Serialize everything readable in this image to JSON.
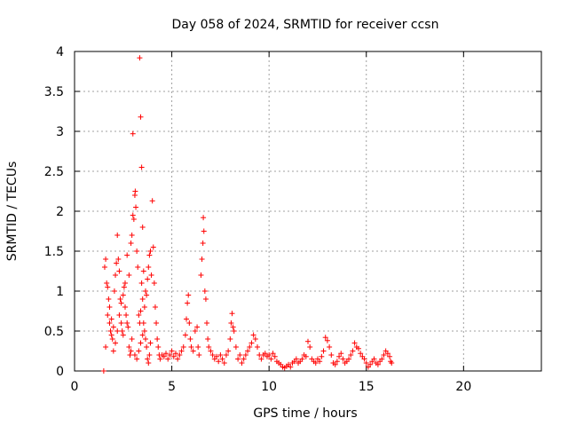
{
  "chart_data": {
    "type": "scatter",
    "title": "Day 058 of 2024, SRMTID for receiver ccsn",
    "xlabel": "GPS time / hours",
    "ylabel": "SRMTID / TECUs",
    "xlim": [
      0,
      24
    ],
    "ylim": [
      0,
      4
    ],
    "xticks": [
      0,
      5,
      10,
      15,
      20
    ],
    "yticks": [
      0,
      0.5,
      1,
      1.5,
      2,
      2.5,
      3,
      3.5,
      4
    ],
    "grid": true,
    "marker": "plus",
    "color": "#ff0000",
    "series": [
      {
        "values": [
          [
            1.5,
            0.0
          ],
          [
            1.55,
            1.3
          ],
          [
            1.6,
            1.4
          ],
          [
            1.65,
            1.1
          ],
          [
            1.7,
            1.05
          ],
          [
            1.75,
            0.9
          ],
          [
            1.8,
            0.6
          ],
          [
            1.85,
            0.5
          ],
          [
            1.9,
            0.45
          ],
          [
            1.95,
            0.4
          ],
          [
            1.6,
            0.3
          ],
          [
            1.7,
            0.7
          ],
          [
            1.8,
            0.8
          ],
          [
            1.9,
            0.65
          ],
          [
            2.0,
            0.55
          ],
          [
            2.05,
            1.0
          ],
          [
            2.1,
            1.2
          ],
          [
            2.15,
            1.35
          ],
          [
            2.2,
            1.7
          ],
          [
            2.25,
            1.4
          ],
          [
            2.3,
            1.25
          ],
          [
            2.35,
            0.9
          ],
          [
            2.4,
            0.6
          ],
          [
            2.45,
            0.5
          ],
          [
            2.5,
            0.45
          ],
          [
            2.0,
            0.25
          ],
          [
            2.1,
            0.35
          ],
          [
            2.2,
            0.5
          ],
          [
            2.3,
            0.7
          ],
          [
            2.4,
            0.85
          ],
          [
            2.5,
            0.95
          ],
          [
            2.55,
            1.05
          ],
          [
            2.6,
            0.8
          ],
          [
            2.65,
            0.7
          ],
          [
            2.7,
            0.6
          ],
          [
            2.75,
            0.55
          ],
          [
            2.8,
            0.3
          ],
          [
            2.85,
            0.2
          ],
          [
            2.9,
            0.25
          ],
          [
            2.95,
            0.4
          ],
          [
            2.6,
            1.1
          ],
          [
            2.7,
            1.45
          ],
          [
            2.8,
            1.2
          ],
          [
            2.9,
            1.6
          ],
          [
            2.95,
            1.7
          ],
          [
            3.0,
            1.95
          ],
          [
            3.05,
            1.9
          ],
          [
            3.1,
            2.2
          ],
          [
            3.12,
            2.25
          ],
          [
            3.15,
            2.05
          ],
          [
            3.0,
            2.97
          ],
          [
            3.2,
            1.5
          ],
          [
            3.25,
            1.3
          ],
          [
            3.3,
            0.7
          ],
          [
            3.35,
            0.6
          ],
          [
            3.4,
            0.75
          ],
          [
            3.45,
            1.1
          ],
          [
            3.5,
            0.9
          ],
          [
            3.35,
            3.92
          ],
          [
            3.4,
            3.18
          ],
          [
            3.45,
            2.55
          ],
          [
            3.5,
            1.8
          ],
          [
            3.55,
            1.25
          ],
          [
            3.6,
            0.5
          ],
          [
            3.65,
            0.4
          ],
          [
            3.7,
            0.3
          ],
          [
            3.75,
            0.15
          ],
          [
            3.8,
            0.1
          ],
          [
            3.85,
            0.2
          ],
          [
            3.9,
            0.35
          ],
          [
            3.1,
            0.2
          ],
          [
            3.2,
            0.15
          ],
          [
            3.3,
            0.25
          ],
          [
            3.4,
            0.35
          ],
          [
            3.5,
            0.45
          ],
          [
            3.55,
            0.6
          ],
          [
            3.6,
            0.8
          ],
          [
            3.65,
            1.0
          ],
          [
            3.7,
            0.95
          ],
          [
            3.75,
            1.15
          ],
          [
            3.8,
            1.3
          ],
          [
            3.85,
            1.45
          ],
          [
            3.9,
            1.5
          ],
          [
            3.95,
            1.2
          ],
          [
            4.0,
            2.13
          ],
          [
            4.05,
            1.55
          ],
          [
            4.1,
            1.1
          ],
          [
            4.15,
            0.8
          ],
          [
            4.2,
            0.6
          ],
          [
            4.25,
            0.4
          ],
          [
            4.3,
            0.3
          ],
          [
            4.35,
            0.2
          ],
          [
            4.4,
            0.15
          ],
          [
            4.5,
            0.2
          ],
          [
            4.6,
            0.18
          ],
          [
            4.7,
            0.22
          ],
          [
            4.8,
            0.15
          ],
          [
            4.9,
            0.2
          ],
          [
            5.0,
            0.25
          ],
          [
            5.1,
            0.18
          ],
          [
            5.2,
            0.22
          ],
          [
            5.3,
            0.15
          ],
          [
            5.4,
            0.2
          ],
          [
            5.5,
            0.25
          ],
          [
            5.6,
            0.3
          ],
          [
            5.7,
            0.45
          ],
          [
            5.75,
            0.65
          ],
          [
            5.8,
            0.85
          ],
          [
            5.85,
            0.95
          ],
          [
            5.9,
            0.6
          ],
          [
            5.95,
            0.4
          ],
          [
            6.0,
            0.3
          ],
          [
            6.1,
            0.25
          ],
          [
            6.2,
            0.5
          ],
          [
            6.3,
            0.55
          ],
          [
            6.35,
            0.3
          ],
          [
            6.4,
            0.2
          ],
          [
            6.5,
            1.2
          ],
          [
            6.55,
            1.4
          ],
          [
            6.6,
            1.6
          ],
          [
            6.62,
            1.92
          ],
          [
            6.65,
            1.75
          ],
          [
            6.7,
            1.0
          ],
          [
            6.75,
            0.9
          ],
          [
            6.8,
            0.6
          ],
          [
            6.85,
            0.4
          ],
          [
            6.9,
            0.3
          ],
          [
            7.0,
            0.25
          ],
          [
            7.1,
            0.2
          ],
          [
            7.2,
            0.15
          ],
          [
            7.3,
            0.18
          ],
          [
            7.4,
            0.12
          ],
          [
            7.5,
            0.2
          ],
          [
            7.6,
            0.15
          ],
          [
            7.7,
            0.1
          ],
          [
            7.8,
            0.2
          ],
          [
            7.9,
            0.25
          ],
          [
            8.0,
            0.4
          ],
          [
            8.05,
            0.6
          ],
          [
            8.1,
            0.72
          ],
          [
            8.15,
            0.55
          ],
          [
            8.2,
            0.5
          ],
          [
            8.3,
            0.3
          ],
          [
            8.4,
            0.15
          ],
          [
            8.5,
            0.2
          ],
          [
            8.6,
            0.1
          ],
          [
            8.7,
            0.15
          ],
          [
            8.8,
            0.2
          ],
          [
            8.9,
            0.25
          ],
          [
            9.0,
            0.3
          ],
          [
            9.1,
            0.35
          ],
          [
            9.2,
            0.45
          ],
          [
            9.3,
            0.4
          ],
          [
            9.4,
            0.3
          ],
          [
            9.5,
            0.2
          ],
          [
            9.6,
            0.15
          ],
          [
            9.7,
            0.2
          ],
          [
            9.8,
            0.22
          ],
          [
            9.9,
            0.18
          ],
          [
            10.0,
            0.2
          ],
          [
            10.1,
            0.15
          ],
          [
            10.2,
            0.22
          ],
          [
            10.3,
            0.18
          ],
          [
            10.4,
            0.12
          ],
          [
            10.5,
            0.1
          ],
          [
            10.6,
            0.08
          ],
          [
            10.7,
            0.05
          ],
          [
            10.8,
            0.04
          ],
          [
            10.9,
            0.06
          ],
          [
            11.0,
            0.08
          ],
          [
            11.1,
            0.05
          ],
          [
            11.2,
            0.1
          ],
          [
            11.3,
            0.12
          ],
          [
            11.4,
            0.15
          ],
          [
            11.5,
            0.1
          ],
          [
            11.6,
            0.12
          ],
          [
            11.7,
            0.15
          ],
          [
            11.8,
            0.2
          ],
          [
            11.9,
            0.18
          ],
          [
            12.0,
            0.37
          ],
          [
            12.1,
            0.3
          ],
          [
            12.2,
            0.15
          ],
          [
            12.3,
            0.12
          ],
          [
            12.4,
            0.1
          ],
          [
            12.5,
            0.15
          ],
          [
            12.6,
            0.12
          ],
          [
            12.7,
            0.18
          ],
          [
            12.8,
            0.25
          ],
          [
            12.9,
            0.42
          ],
          [
            13.0,
            0.38
          ],
          [
            13.1,
            0.3
          ],
          [
            13.2,
            0.2
          ],
          [
            13.3,
            0.1
          ],
          [
            13.4,
            0.08
          ],
          [
            13.5,
            0.12
          ],
          [
            13.6,
            0.18
          ],
          [
            13.7,
            0.22
          ],
          [
            13.8,
            0.15
          ],
          [
            13.9,
            0.1
          ],
          [
            14.0,
            0.12
          ],
          [
            14.1,
            0.15
          ],
          [
            14.2,
            0.2
          ],
          [
            14.3,
            0.25
          ],
          [
            14.4,
            0.35
          ],
          [
            14.5,
            0.3
          ],
          [
            14.6,
            0.28
          ],
          [
            14.7,
            0.22
          ],
          [
            14.8,
            0.18
          ],
          [
            14.9,
            0.15
          ],
          [
            15.0,
            0.1
          ],
          [
            15.1,
            0.05
          ],
          [
            15.2,
            0.08
          ],
          [
            15.3,
            0.12
          ],
          [
            15.4,
            0.15
          ],
          [
            15.5,
            0.1
          ],
          [
            15.6,
            0.08
          ],
          [
            15.7,
            0.12
          ],
          [
            15.8,
            0.15
          ],
          [
            15.9,
            0.2
          ],
          [
            16.0,
            0.25
          ],
          [
            16.1,
            0.22
          ],
          [
            16.2,
            0.18
          ],
          [
            16.25,
            0.12
          ],
          [
            16.3,
            0.1
          ]
        ]
      }
    ]
  }
}
